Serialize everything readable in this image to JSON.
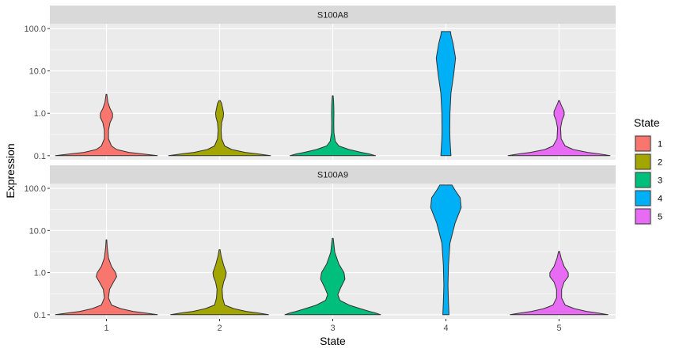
{
  "chart_data": {
    "type": "violin",
    "xlabel": "State",
    "ylabel": "Expression",
    "y_scale": "log10",
    "ylim": [
      0.08,
      130
    ],
    "x_categories": [
      "1",
      "2",
      "3",
      "4",
      "5"
    ],
    "y_ticks": [
      0.1,
      1.0,
      10.0,
      100.0
    ],
    "y_tick_labels": [
      "0.1",
      "1.0",
      "10.0",
      "100.0"
    ],
    "legend": {
      "title": "State",
      "placement": "right",
      "items": [
        {
          "label": "1",
          "color": "#F8766D"
        },
        {
          "label": "2",
          "color": "#A3A500"
        },
        {
          "label": "3",
          "color": "#00BF7D"
        },
        {
          "label": "4",
          "color": "#00B0F6"
        },
        {
          "label": "5",
          "color": "#E76BF3"
        }
      ]
    },
    "panels": [
      {
        "gene": "S100A8",
        "violins": [
          {
            "state": "1",
            "min": 0.1,
            "max": 2.8,
            "profile": [
              [
                0.1,
                0.5
              ],
              [
                0.11,
                0.36
              ],
              [
                0.12,
                0.22
              ],
              [
                0.14,
                0.1
              ],
              [
                0.17,
                0.05
              ],
              [
                0.25,
                0.02
              ],
              [
                0.4,
                0.02
              ],
              [
                0.6,
                0.035
              ],
              [
                0.8,
                0.06
              ],
              [
                1.0,
                0.06
              ],
              [
                1.3,
                0.035
              ],
              [
                1.8,
                0.015
              ],
              [
                2.8,
                0.004
              ]
            ]
          },
          {
            "state": "2",
            "min": 0.1,
            "max": 2.0,
            "profile": [
              [
                0.1,
                0.5
              ],
              [
                0.11,
                0.38
              ],
              [
                0.12,
                0.25
              ],
              [
                0.14,
                0.12
              ],
              [
                0.17,
                0.05
              ],
              [
                0.25,
                0.02
              ],
              [
                0.4,
                0.015
              ],
              [
                0.6,
                0.02
              ],
              [
                0.8,
                0.035
              ],
              [
                1.0,
                0.04
              ],
              [
                1.3,
                0.03
              ],
              [
                1.7,
                0.02
              ],
              [
                2.0,
                0.006
              ]
            ]
          },
          {
            "state": "3",
            "min": 0.1,
            "max": 2.6,
            "profile": [
              [
                0.1,
                0.42
              ],
              [
                0.11,
                0.36
              ],
              [
                0.12,
                0.28
              ],
              [
                0.14,
                0.16
              ],
              [
                0.17,
                0.06
              ],
              [
                0.22,
                0.025
              ],
              [
                0.35,
                0.012
              ],
              [
                0.6,
                0.01
              ],
              [
                1.0,
                0.012
              ],
              [
                1.5,
                0.01
              ],
              [
                2.0,
                0.008
              ],
              [
                2.6,
                0.004
              ]
            ]
          },
          {
            "state": "4",
            "min": 0.1,
            "max": 85,
            "profile": [
              [
                0.1,
                0.05
              ],
              [
                0.15,
                0.045
              ],
              [
                0.25,
                0.04
              ],
              [
                0.4,
                0.038
              ],
              [
                1.0,
                0.04
              ],
              [
                3.0,
                0.05
              ],
              [
                8.0,
                0.075
              ],
              [
                20.0,
                0.095
              ],
              [
                45.0,
                0.07
              ],
              [
                70.0,
                0.05
              ],
              [
                85.0,
                0.045
              ]
            ]
          },
          {
            "state": "5",
            "min": 0.1,
            "max": 2.0,
            "profile": [
              [
                0.1,
                0.5
              ],
              [
                0.11,
                0.4
              ],
              [
                0.12,
                0.28
              ],
              [
                0.14,
                0.14
              ],
              [
                0.17,
                0.06
              ],
              [
                0.25,
                0.02
              ],
              [
                0.45,
                0.015
              ],
              [
                0.7,
                0.03
              ],
              [
                0.9,
                0.05
              ],
              [
                1.1,
                0.05
              ],
              [
                1.4,
                0.03
              ],
              [
                1.7,
                0.015
              ],
              [
                2.0,
                0.005
              ]
            ]
          }
        ]
      },
      {
        "gene": "S100A9",
        "violins": [
          {
            "state": "1",
            "min": 0.1,
            "max": 6.0,
            "profile": [
              [
                0.1,
                0.5
              ],
              [
                0.11,
                0.38
              ],
              [
                0.12,
                0.26
              ],
              [
                0.14,
                0.14
              ],
              [
                0.17,
                0.05
              ],
              [
                0.25,
                0.02
              ],
              [
                0.4,
                0.03
              ],
              [
                0.6,
                0.07
              ],
              [
                0.8,
                0.1
              ],
              [
                1.0,
                0.09
              ],
              [
                1.4,
                0.05
              ],
              [
                2.2,
                0.02
              ],
              [
                4.0,
                0.008
              ],
              [
                6.0,
                0.003
              ]
            ]
          },
          {
            "state": "2",
            "min": 0.1,
            "max": 3.5,
            "profile": [
              [
                0.1,
                0.48
              ],
              [
                0.11,
                0.38
              ],
              [
                0.12,
                0.26
              ],
              [
                0.14,
                0.14
              ],
              [
                0.17,
                0.05
              ],
              [
                0.25,
                0.03
              ],
              [
                0.4,
                0.025
              ],
              [
                0.6,
                0.04
              ],
              [
                0.8,
                0.06
              ],
              [
                1.0,
                0.065
              ],
              [
                1.5,
                0.04
              ],
              [
                2.5,
                0.015
              ],
              [
                3.5,
                0.005
              ]
            ]
          },
          {
            "state": "3",
            "min": 0.1,
            "max": 6.5,
            "profile": [
              [
                0.1,
                0.47
              ],
              [
                0.11,
                0.42
              ],
              [
                0.12,
                0.36
              ],
              [
                0.14,
                0.27
              ],
              [
                0.17,
                0.16
              ],
              [
                0.22,
                0.07
              ],
              [
                0.3,
                0.05
              ],
              [
                0.45,
                0.08
              ],
              [
                0.7,
                0.12
              ],
              [
                1.0,
                0.11
              ],
              [
                1.6,
                0.06
              ],
              [
                3.0,
                0.02
              ],
              [
                6.5,
                0.005
              ]
            ]
          },
          {
            "state": "4",
            "min": 0.1,
            "max": 120,
            "profile": [
              [
                0.1,
                0.03
              ],
              [
                0.2,
                0.025
              ],
              [
                0.5,
                0.02
              ],
              [
                1.5,
                0.025
              ],
              [
                5.0,
                0.04
              ],
              [
                15.0,
                0.09
              ],
              [
                35.0,
                0.15
              ],
              [
                60.0,
                0.14
              ],
              [
                90.0,
                0.09
              ],
              [
                120.0,
                0.06
              ]
            ]
          },
          {
            "state": "5",
            "min": 0.1,
            "max": 3.2,
            "profile": [
              [
                0.1,
                0.48
              ],
              [
                0.11,
                0.38
              ],
              [
                0.12,
                0.27
              ],
              [
                0.14,
                0.15
              ],
              [
                0.17,
                0.06
              ],
              [
                0.25,
                0.025
              ],
              [
                0.4,
                0.025
              ],
              [
                0.6,
                0.05
              ],
              [
                0.8,
                0.09
              ],
              [
                1.0,
                0.09
              ],
              [
                1.4,
                0.05
              ],
              [
                2.2,
                0.02
              ],
              [
                3.2,
                0.005
              ]
            ]
          }
        ]
      }
    ]
  }
}
